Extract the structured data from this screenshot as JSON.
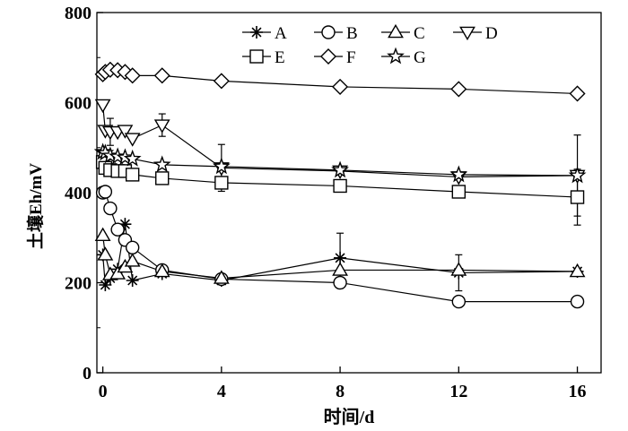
{
  "chart_data": {
    "type": "line",
    "title": "",
    "xlabel": "时间/d",
    "ylabel": "土壤Eh/mV",
    "xlim": [
      -0.2,
      16.8
    ],
    "ylim": [
      0,
      800
    ],
    "x_ticks": [
      0,
      4,
      8,
      12,
      16
    ],
    "x_tick_labels": [
      "0",
      "4",
      "8",
      "12",
      "16"
    ],
    "y_ticks": [
      0,
      200,
      400,
      600,
      800
    ],
    "y_tick_labels": [
      "0",
      "200",
      "400",
      "600",
      "800"
    ],
    "grid": false,
    "legend_position": "top-center",
    "series": [
      {
        "name": "A",
        "marker": "asterisk",
        "x": [
          0,
          0.083,
          0.25,
          0.5,
          0.75,
          1,
          2,
          4,
          8,
          12,
          16
        ],
        "y": [
          262,
          195,
          210,
          230,
          330,
          205,
          220,
          205,
          255,
          222,
          225
        ],
        "err": [
          0,
          0,
          0,
          0,
          0,
          0,
          0,
          0,
          55,
          40,
          0
        ]
      },
      {
        "name": "B",
        "marker": "circle",
        "x": [
          0,
          0.083,
          0.25,
          0.5,
          0.75,
          1,
          2,
          4,
          8,
          12,
          16
        ],
        "y": [
          400,
          402,
          365,
          318,
          295,
          278,
          228,
          208,
          200,
          158,
          158
        ],
        "err": [
          0,
          0,
          0,
          0,
          0,
          0,
          0,
          0,
          0,
          0,
          0
        ]
      },
      {
        "name": "C",
        "marker": "triangle-up",
        "x": [
          0,
          0.083,
          0.25,
          0.5,
          0.75,
          1,
          2,
          4,
          8,
          12,
          16
        ],
        "y": [
          305,
          262,
          218,
          220,
          235,
          248,
          225,
          210,
          228,
          228,
          225
        ],
        "err": [
          0,
          0,
          0,
          0,
          0,
          0,
          0,
          0,
          0,
          0,
          0
        ]
      },
      {
        "name": "D",
        "marker": "triangle-down",
        "x": [
          0,
          0.083,
          0.25,
          0.5,
          0.75,
          1,
          2,
          4,
          8,
          12,
          16
        ],
        "y": [
          595,
          538,
          535,
          535,
          538,
          520,
          550,
          455,
          448,
          435,
          438
        ],
        "err": [
          0,
          0,
          30,
          0,
          0,
          0,
          25,
          52,
          0,
          0,
          0
        ]
      },
      {
        "name": "E",
        "marker": "square",
        "x": [
          0,
          0.083,
          0.25,
          0.5,
          0.75,
          1,
          2,
          4,
          8,
          12,
          16
        ],
        "y": [
          468,
          455,
          450,
          448,
          448,
          440,
          432,
          422,
          415,
          402,
          390
        ],
        "err": [
          0,
          0,
          0,
          0,
          0,
          0,
          0,
          0,
          0,
          0,
          62
        ]
      },
      {
        "name": "F",
        "marker": "diamond",
        "x": [
          0,
          0.083,
          0.25,
          0.5,
          0.75,
          1,
          2,
          4,
          8,
          12,
          16
        ],
        "y": [
          663,
          668,
          673,
          672,
          668,
          660,
          660,
          648,
          635,
          630,
          620
        ],
        "err": [
          0,
          0,
          0,
          0,
          0,
          0,
          0,
          0,
          0,
          0,
          0
        ]
      },
      {
        "name": "G",
        "marker": "star",
        "x": [
          0,
          0.083,
          0.25,
          0.5,
          0.75,
          1,
          2,
          4,
          8,
          12,
          16
        ],
        "y": [
          490,
          488,
          482,
          480,
          478,
          475,
          462,
          458,
          450,
          440,
          438
        ],
        "err": [
          0,
          0,
          0,
          0,
          0,
          0,
          0,
          0,
          0,
          0,
          90
        ]
      }
    ]
  }
}
